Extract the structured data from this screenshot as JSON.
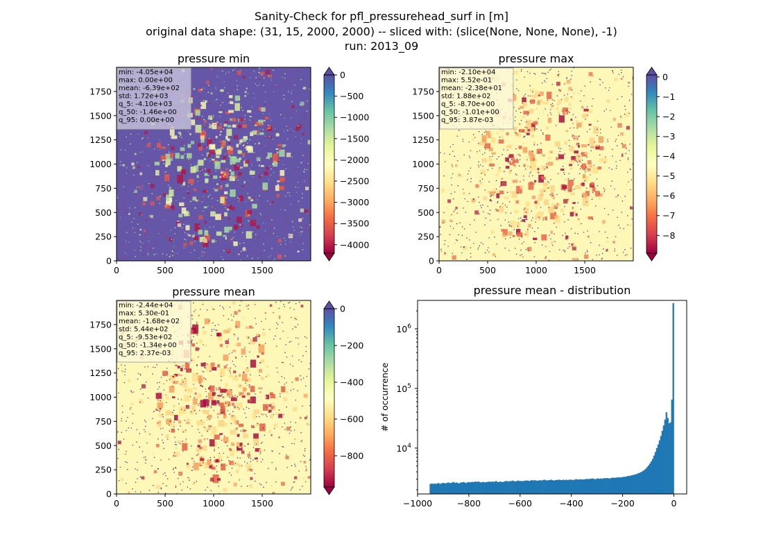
{
  "suptitle": {
    "line1": "Sanity-Check for pfl_pressurehead_surf in [m]",
    "line2": "original data shape: (31, 15, 2000, 2000) -- sliced with: (slice(None, None, None), -1)",
    "line3": "run: 2013_09"
  },
  "chart_data": [
    {
      "type": "heatmap",
      "title": "pressure min",
      "xlim": [
        0,
        2000
      ],
      "ylim": [
        0,
        2000
      ],
      "xticks": [
        "0",
        "500",
        "1000",
        "1500"
      ],
      "yticks": [
        "0",
        "250",
        "500",
        "750",
        "1000",
        "1250",
        "1500",
        "1750"
      ],
      "colormap": "Spectral",
      "colorbar": {
        "range": [
          -4200,
          0
        ],
        "extend": "both",
        "ticks": [
          "0",
          "−500",
          "−1000",
          "−1500",
          "−2000",
          "−2500",
          "−3000",
          "−3500",
          "−4000"
        ]
      },
      "stats": [
        "min: -4.05e+04",
        "max: 0.00e+00",
        "mean: -6.39e+02",
        "std: 1.72e+03",
        "q_5: -4.10e+03",
        "q_50: -1.46e+00",
        "q_95: 0.00e+00"
      ]
    },
    {
      "type": "heatmap",
      "title": "pressure max",
      "xlim": [
        0,
        2000
      ],
      "ylim": [
        0,
        2000
      ],
      "xticks": [
        "0",
        "500",
        "1000",
        "1500"
      ],
      "yticks": [
        "0",
        "250",
        "500",
        "750",
        "1000",
        "1250",
        "1500",
        "1750"
      ],
      "colormap": "Spectral",
      "colorbar": {
        "range": [
          -8.9,
          0.1
        ],
        "extend": "both",
        "ticks": [
          "0",
          "−1",
          "−2",
          "−3",
          "−4",
          "−5",
          "−6",
          "−7",
          "−8"
        ]
      },
      "stats": [
        "min: -2.10e+04",
        "max: 5.52e-01",
        "mean: -2.38e+01",
        "std: 1.88e+02",
        "q_5: -8.70e+00",
        "q_50: -1.01e+00",
        "q_95: 3.87e-03"
      ]
    },
    {
      "type": "heatmap",
      "title": "pressure mean",
      "xlim": [
        0,
        2000
      ],
      "ylim": [
        0,
        2000
      ],
      "xticks": [
        "0",
        "500",
        "1000",
        "1500"
      ],
      "yticks": [
        "0",
        "250",
        "500",
        "750",
        "1000",
        "1250",
        "1500",
        "1750"
      ],
      "colormap": "Spectral",
      "colorbar": {
        "range": [
          -970,
          0
        ],
        "extend": "both",
        "ticks": [
          "0",
          "−200",
          "−400",
          "−600",
          "−800"
        ]
      },
      "stats": [
        "min: -2.44e+04",
        "max: 5.30e-01",
        "mean: -1.68e+02",
        "std: 5.44e+02",
        "q_5: -9.53e+02",
        "q_50: -1.34e+00",
        "q_95: 2.37e-03"
      ]
    },
    {
      "type": "bar",
      "title": "pressure mean - distribution",
      "xlabel": "",
      "ylabel": "# of occurrence",
      "yscale": "log",
      "xlim": [
        -1000,
        50
      ],
      "ylim": [
        1700,
        3000000
      ],
      "xticks": [
        "−1000",
        "−800",
        "−600",
        "−400",
        "−200",
        "0"
      ],
      "yticks": [
        "10",
        "10",
        "10"
      ],
      "ytick_exponents": [
        "4",
        "5",
        "6"
      ],
      "bar_color": "#1f77b4",
      "x_range": [
        -953,
        0
      ],
      "values": [
        2500,
        2550,
        2500,
        2550,
        2500,
        2550,
        2600,
        2500,
        2550,
        2600,
        2600,
        2550,
        2600,
        2650,
        2600,
        2600,
        2650,
        2700,
        2600,
        2650,
        2600,
        2550,
        2650,
        2650,
        2700,
        2650,
        2600,
        2650,
        2700,
        2650,
        2700,
        2700,
        2700,
        2750,
        2700,
        2750,
        2700,
        2650,
        2700,
        2700,
        2650,
        2700,
        2700,
        2750,
        2700,
        2750,
        2700,
        2750,
        2800,
        2700,
        2700,
        2750,
        2700,
        2700,
        2750,
        2800,
        2800,
        2750,
        2800,
        2800,
        2850,
        2800,
        2750,
        2800,
        2850,
        2800,
        2800,
        2800,
        2800,
        2850,
        2850,
        2850,
        2800,
        2850,
        2900,
        2850,
        2900,
        2850,
        2850,
        2850,
        2900,
        2850,
        2900,
        2950,
        2900,
        2850,
        2900,
        2900,
        2950,
        2900,
        2850,
        2900,
        2900,
        2950,
        2950,
        2900,
        2900,
        2950,
        2900,
        2950,
        2900,
        2950,
        2950,
        2950,
        2900,
        2950,
        3000,
        3000,
        2950,
        3000,
        3000,
        2950,
        3000,
        3000,
        3050,
        3000,
        3050,
        3050,
        3100,
        3050,
        3000,
        3050,
        3100,
        3050,
        3100,
        3050,
        3100,
        3150,
        3100,
        3150,
        3100,
        3100,
        3150,
        3200,
        3150,
        3200,
        3200,
        3250,
        3200,
        3250,
        3250,
        3300,
        3300,
        3350,
        3400,
        3400,
        3450,
        3500,
        3550,
        3600,
        3650,
        3750,
        3800,
        3900,
        4000,
        4150,
        4300,
        4500,
        4800,
        5100,
        5500,
        6000,
        6600,
        7500,
        8600,
        10000,
        11500,
        13500,
        16000,
        19500,
        24000,
        30000,
        40000,
        32000,
        26000,
        27000,
        65000,
        2700000
      ]
    }
  ]
}
